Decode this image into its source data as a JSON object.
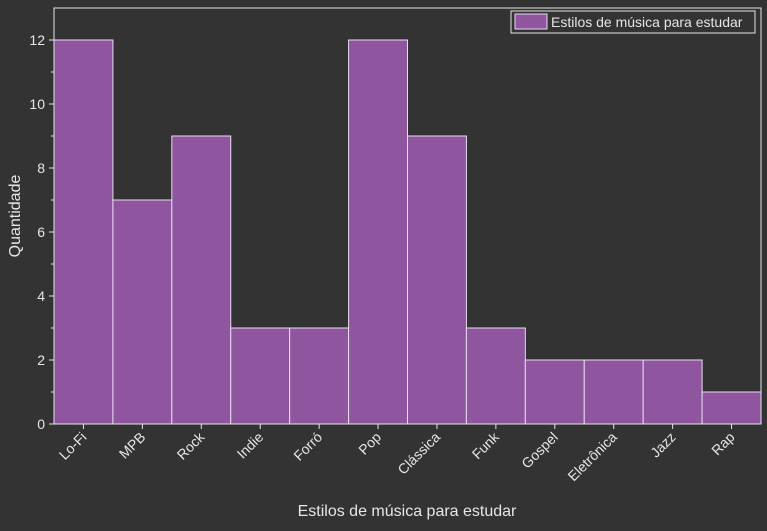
{
  "chart_data": {
    "type": "bar",
    "categories": [
      "Lo-Fi",
      "MPB",
      "Rock",
      "Indie",
      "Forró",
      "Pop",
      "Clássica",
      "Funk",
      "Gospel",
      "Eletrônica",
      "Jazz",
      "Rap"
    ],
    "series": [
      {
        "name": "Estilos de música para estudar",
        "values": [
          12,
          7,
          9,
          3,
          3,
          12,
          9,
          3,
          2,
          2,
          2,
          1
        ]
      }
    ],
    "xlabel": "Estilos de música para estudar",
    "ylabel": "Quantidade",
    "ylim": [
      0,
      13
    ],
    "yticks": [
      0,
      2,
      4,
      6,
      8,
      10,
      12
    ],
    "grid": false,
    "legend_position": "top-right"
  },
  "colors": {
    "background": "#333333",
    "bar_fill": "#8f559f",
    "bar_edge": "#e8dcf0",
    "axis": "#e6e6e6",
    "text": "#e6e6e6"
  }
}
